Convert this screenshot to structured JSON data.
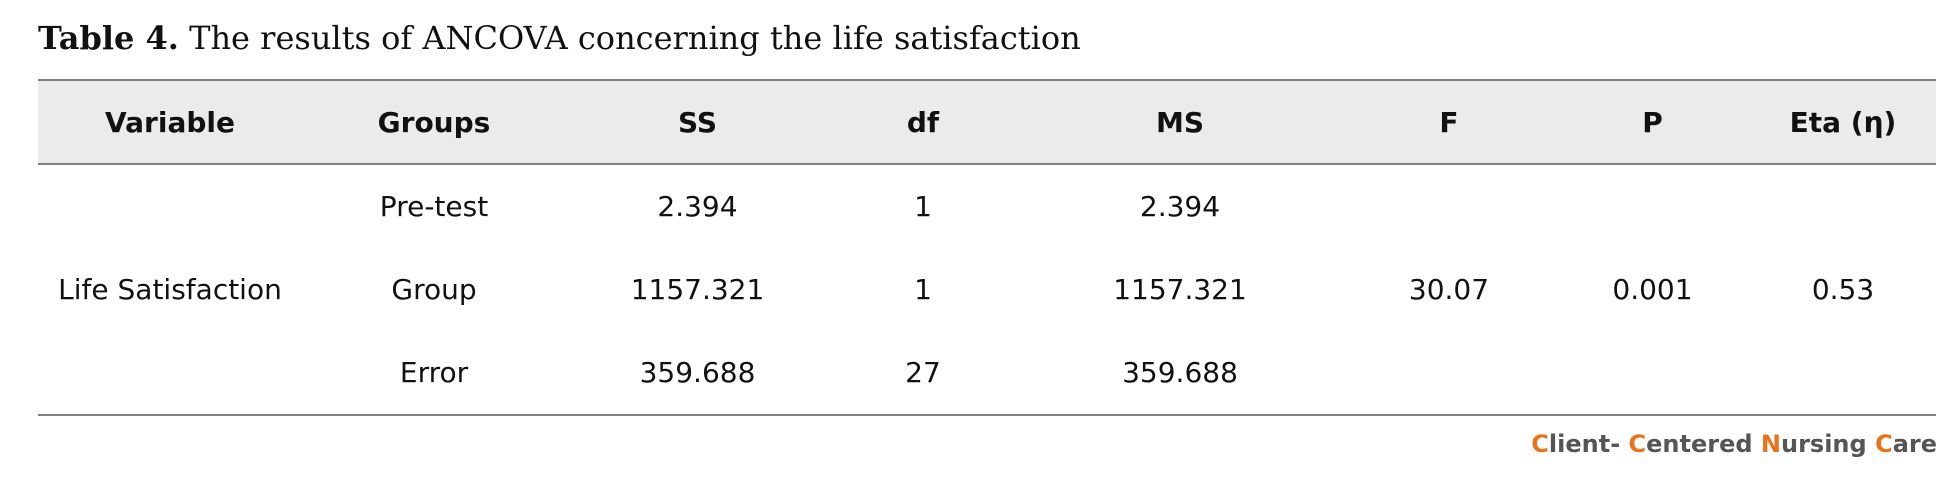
{
  "caption": {
    "label": "Table 4.",
    "text": " The results of ANCOVA concerning the life satisfaction"
  },
  "table": {
    "headers": [
      "Variable",
      "Groups",
      "SS",
      "df",
      "MS",
      "F",
      "P",
      "Eta (η)"
    ],
    "variable": "Life Satisfaction",
    "rows": [
      {
        "group": "Pre-test",
        "ss": "2.394",
        "df": "1",
        "ms": "2.394"
      },
      {
        "group": "Group",
        "ss": "1157.321",
        "df": "1",
        "ms": "1157.321"
      },
      {
        "group": "Error",
        "ss": "359.688",
        "df": "27",
        "ms": "359.688"
      }
    ],
    "f": "30.07",
    "p": "0.001",
    "eta": "0.53"
  },
  "brand": {
    "text": "Client- Centered Nursing Care",
    "text_color": "#555555",
    "accent_color": "#e8731a"
  }
}
